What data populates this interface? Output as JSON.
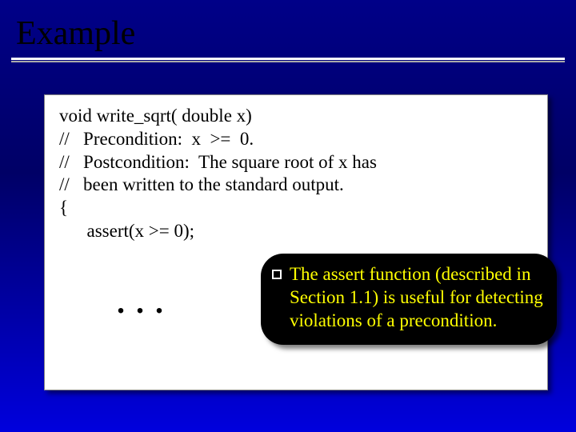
{
  "title": "Example",
  "code": {
    "l1": "void write_sqrt( double x)",
    "l2": "//   Precondition:  x  >=  0.",
    "l3": "//   Postcondition:  The square root of x has",
    "l4": "//   been written to the standard output.",
    "l5": "{",
    "l6": "      assert(x >= 0);"
  },
  "dots": ". . .",
  "callout": "The assert function (described in Section 1.1) is useful for detecting violations of a precondition.",
  "colors": {
    "bg_top": "#000088",
    "bg_mid": "#000066",
    "bg_bottom": "#0000dd",
    "code_bg": "#ffffff",
    "callout_bg": "#000000",
    "callout_text": "#ffff00",
    "title_color": "#000000"
  }
}
